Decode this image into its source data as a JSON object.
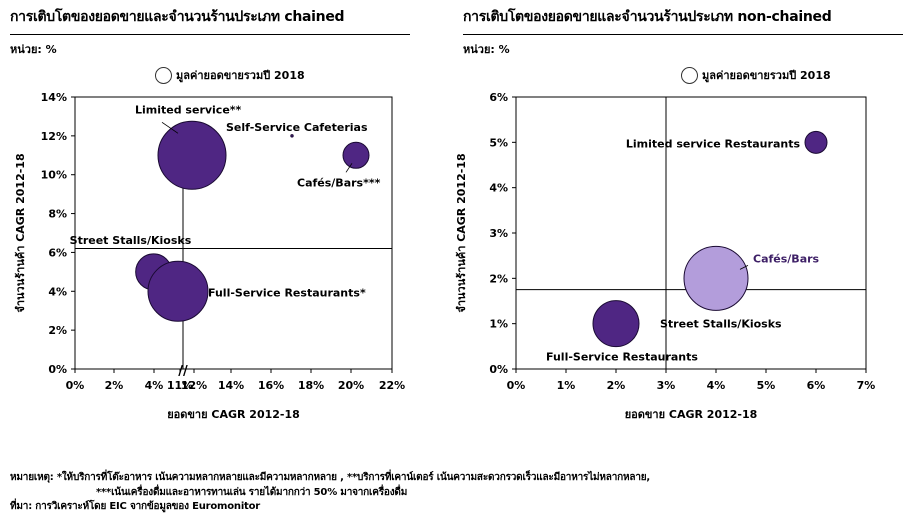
{
  "left": {
    "title": "การเติบโตของยอดขายและจำนวนร้านประเภท chained",
    "unit": "หน่วย: %",
    "legend": "มูลค่ายอดขายรวมปี 2018"
  },
  "right": {
    "title": "การเติบโตของยอดขายและจำนวนร้านประเภท non-chained",
    "unit": "หน่วย: %",
    "legend": "มูลค่ายอดขายรวมปี 2018"
  },
  "footnote": {
    "line1": "หมายเหตุ:  *ให้บริการที่โต๊ะอาหาร เน้นความหลากหลายและมีความหลากหลาย , **บริการที่เคาน์เตอร์ เน้นความสะดวกรวดเร็วและมีอาหารไม่หลากหลาย,",
    "line2": "***เน้นเครื่องดื่มและอาหารทานเล่น รายได้มากกว่า 50% มาจากเครื่องดื่ม",
    "line3": "ที่มา:   การวิเคราะห์โดย EIC จากข้อมูลของ Euromonitor"
  },
  "chart_data": [
    {
      "type": "scatter",
      "title": "การเติบโตของยอดขายและจำนวนร้านประเภท chained",
      "xlabel": "ยอดขาย CAGR 2012-18",
      "ylabel": "จำนวนร้านค้า CAGR 2012-18",
      "xlim": [
        0,
        22
      ],
      "ylim": [
        0,
        14
      ],
      "x_ticks": [
        "0%",
        "2%",
        "4%",
        "6%",
        "11%",
        "12%",
        "14%",
        "16%",
        "18%",
        "20%",
        "22%"
      ],
      "x_tick_values": [
        0,
        2,
        4,
        6,
        11,
        12,
        14,
        16,
        18,
        20,
        22
      ],
      "y_ticks": [
        "0%",
        "2%",
        "4%",
        "6%",
        "8%",
        "10%",
        "12%",
        "14%"
      ],
      "y_tick_values": [
        0,
        2,
        4,
        6,
        8,
        10,
        12,
        14
      ],
      "axis_break": "//",
      "ref_x": 11.5,
      "ref_y": 6.2,
      "points": [
        {
          "label": "Limited service**",
          "x": 12.0,
          "y": 11.0,
          "size": 100,
          "color": "#4f2683"
        },
        {
          "label": "Self-Service Cafeterias",
          "x": 17.0,
          "y": 12.0,
          "size": 0.3,
          "color": "#4f2683"
        },
        {
          "label": "Cafés/Bars***",
          "x": 20.2,
          "y": 11.0,
          "size": 4,
          "color": "#4f2683"
        },
        {
          "label": "Street Stalls/Kiosks",
          "x": 4.0,
          "y": 5.0,
          "size": 8,
          "color": "#4f2683"
        },
        {
          "label": "Full-Service Restaurants*",
          "x": 11.3,
          "y": 4.0,
          "size": 20,
          "color": "#4f2683"
        }
      ]
    },
    {
      "type": "scatter",
      "title": "การเติบโตของยอดขายและจำนวนร้านประเภท non-chained",
      "xlabel": "ยอดขาย CAGR 2012-18",
      "ylabel": "จำนวนร้านค้า CAGR 2012-18",
      "xlim": [
        0,
        7
      ],
      "ylim": [
        0,
        6
      ],
      "x_ticks": [
        "0%",
        "1%",
        "2%",
        "3%",
        "4%",
        "5%",
        "6%",
        "7%"
      ],
      "x_tick_values": [
        0,
        1,
        2,
        3,
        4,
        5,
        6,
        7
      ],
      "y_ticks": [
        "0%",
        "1%",
        "2%",
        "3%",
        "4%",
        "5%",
        "6%"
      ],
      "y_tick_values": [
        0,
        1,
        2,
        3,
        4,
        5,
        6
      ],
      "ref_x": 3.0,
      "ref_y": 1.75,
      "points": [
        {
          "label": "Limited service Restaurants",
          "x": 6.0,
          "y": 5.0,
          "size": 3,
          "color": "#4f2683"
        },
        {
          "label": "Cafés/Bars",
          "x": 4.0,
          "y": 2.0,
          "size": 26,
          "color": "#b39ddb"
        },
        {
          "label": "Street Stalls/Kiosks",
          "x": 2.0,
          "y": 1.0,
          "size": 13,
          "color": "#4f2683"
        },
        {
          "label": "Full-Service Restaurants",
          "x": 2.0,
          "y": 1.0,
          "size": 0,
          "color": "#4f2683"
        }
      ]
    }
  ]
}
